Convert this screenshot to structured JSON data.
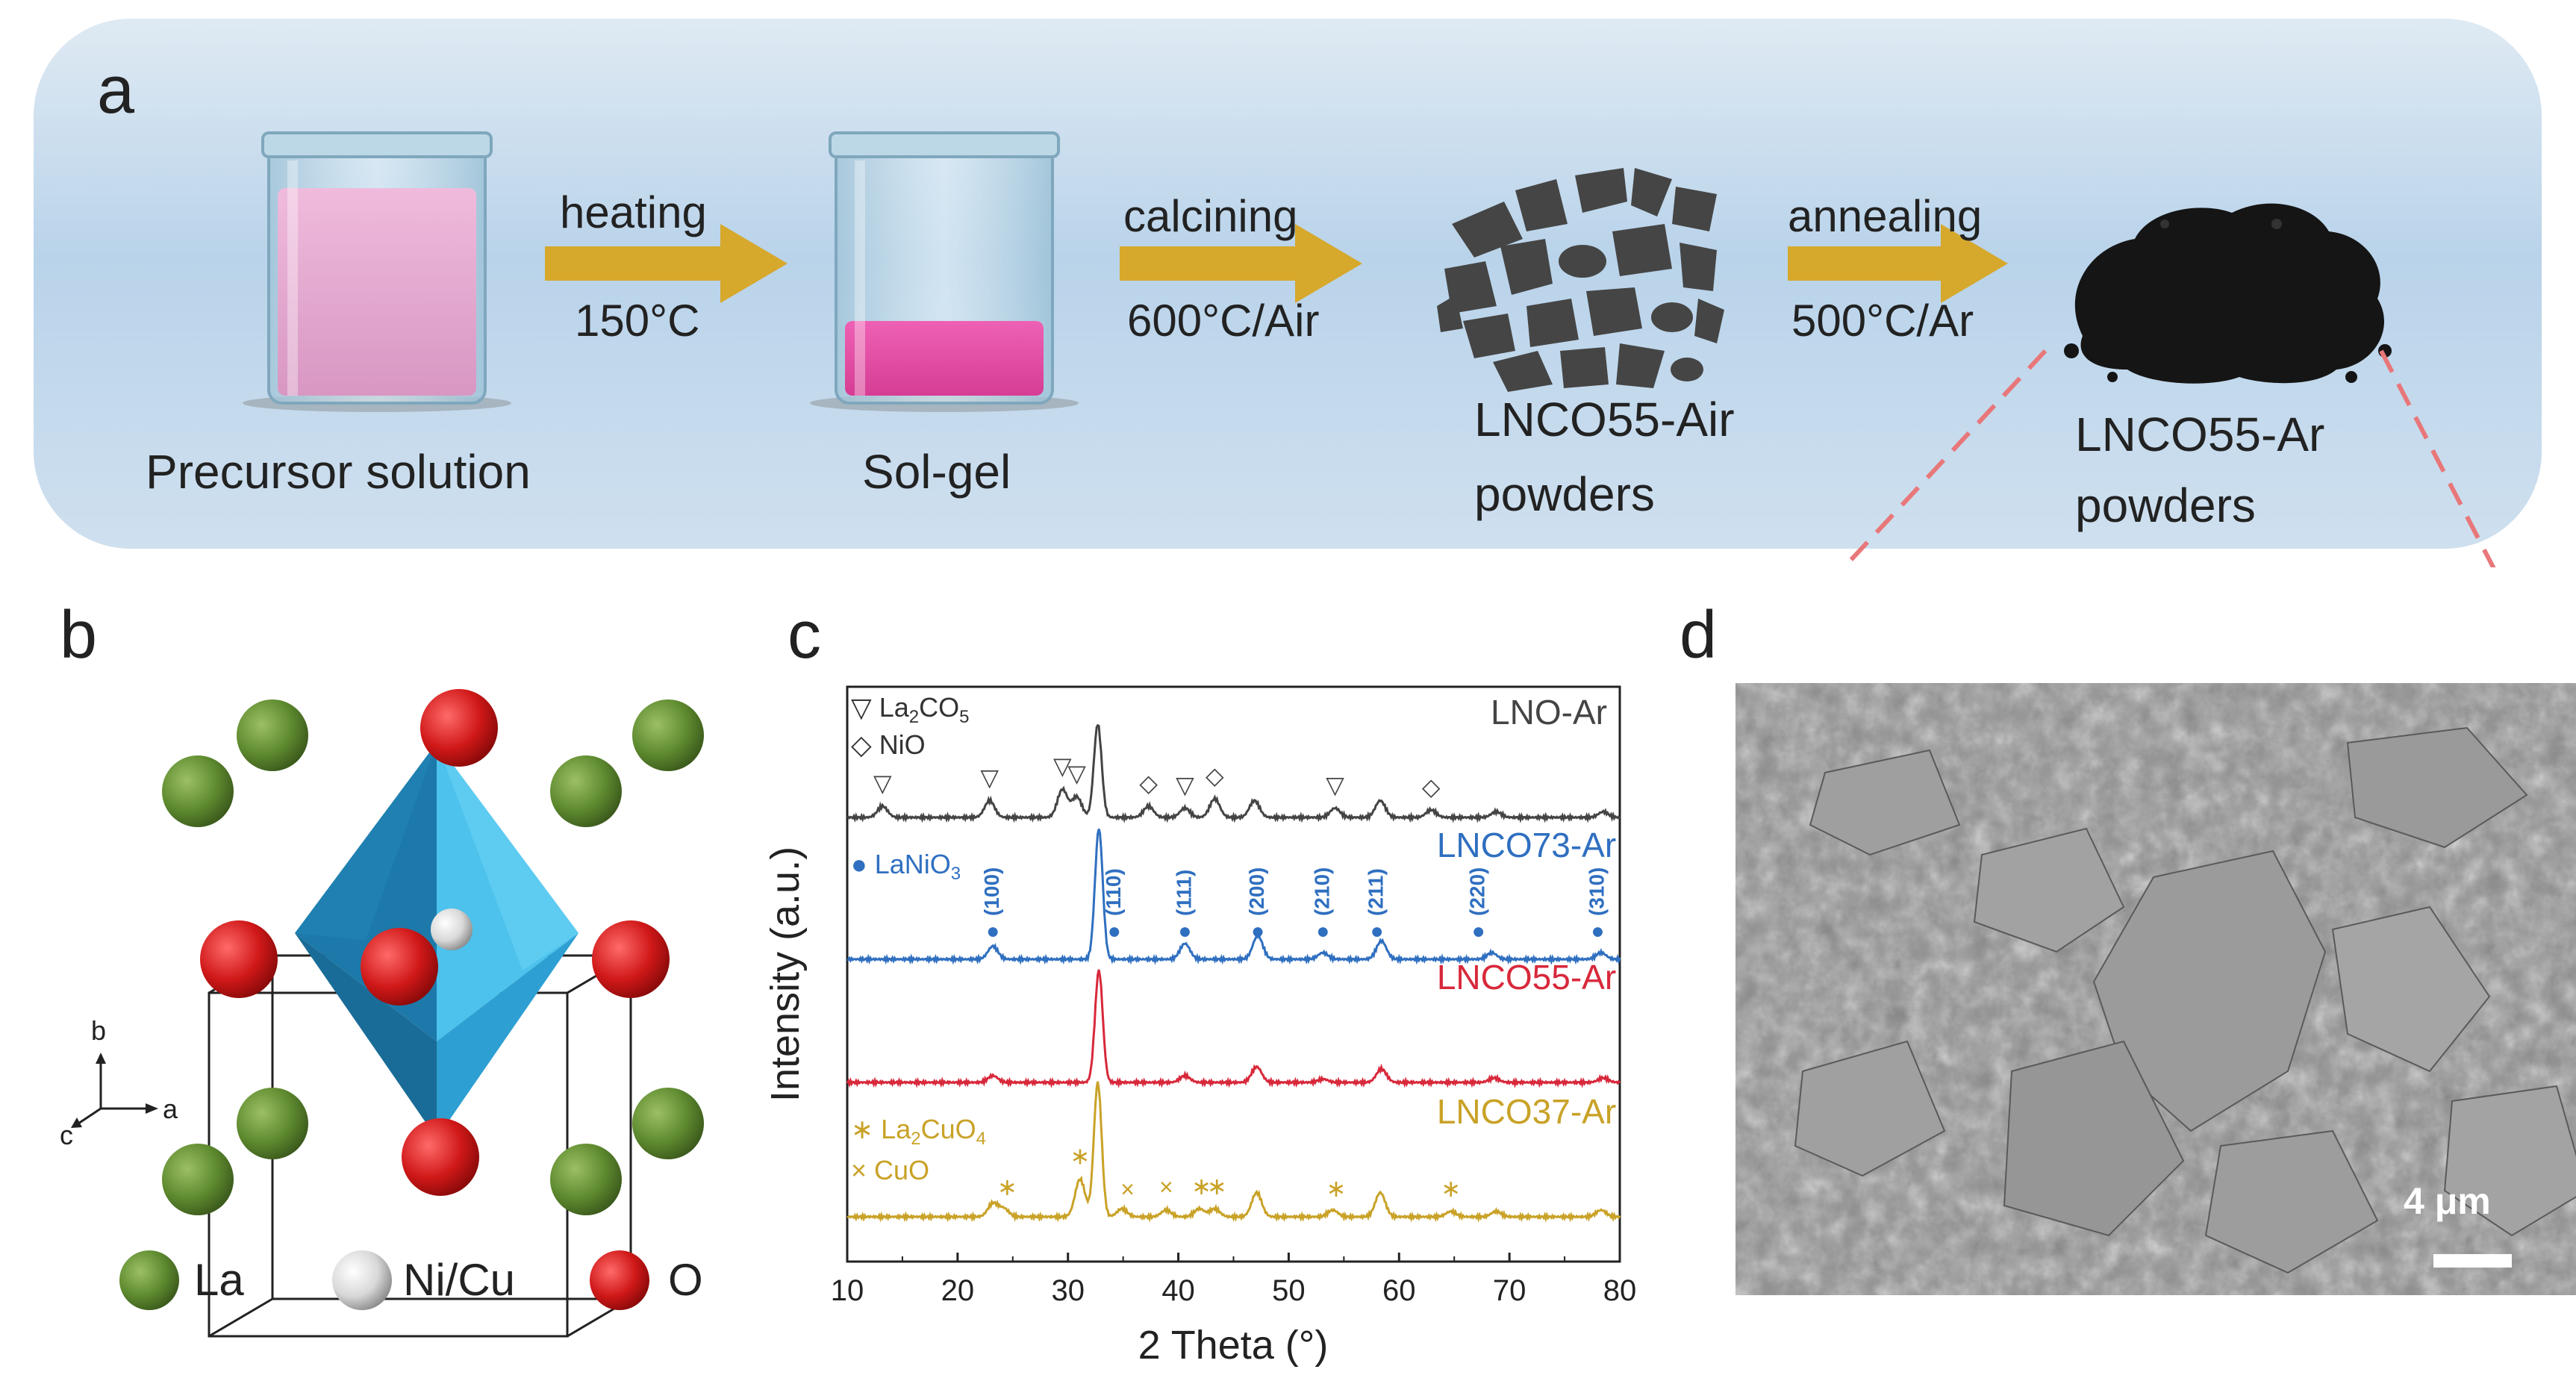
{
  "panel_a": {
    "label": "a",
    "steps": [
      {
        "label": "Precursor solution"
      },
      {
        "label": "Sol-gel"
      },
      {
        "label_line1": "LNCO55-Air",
        "label_line2": "powders"
      },
      {
        "label_line1": "LNCO55-Ar",
        "label_line2": "powders"
      }
    ],
    "arrows": [
      {
        "top": "heating",
        "bottom": "150°C"
      },
      {
        "top": "calcining",
        "bottom": "600°C/Air"
      },
      {
        "top": "annealing",
        "bottom": "500°C/Ar"
      }
    ],
    "colors": {
      "background": "#c6dcee",
      "arrow": "#d6a82c",
      "precursor_liquid": "#e6a6cf",
      "solgel": "#e2459e",
      "flakes": "#444444",
      "powder": "#151515",
      "dashed": "#e8777a"
    }
  },
  "panel_b": {
    "label": "b",
    "axes": {
      "a": "a",
      "b": "b",
      "c": "c"
    },
    "legend": [
      {
        "label": "La",
        "color": "#5e8a2f"
      },
      {
        "label": "Ni/Cu",
        "color": "#d8d8d8"
      },
      {
        "label": "O",
        "color": "#d01818"
      }
    ],
    "octahedron_color": "#2e9fd2"
  },
  "panel_c": {
    "label": "c",
    "chart_data": {
      "type": "line",
      "xlabel": "2 Theta (°)",
      "ylabel": "Intensity (a.u.)",
      "xlim": [
        10,
        80
      ],
      "xticks": [
        "10",
        "20",
        "30",
        "40",
        "50",
        "60",
        "70",
        "80"
      ],
      "series": [
        {
          "name": "LNO-Ar",
          "color": "#444444",
          "peaks": [
            [
              13.2,
              0.12
            ],
            [
              22.9,
              0.18
            ],
            [
              29.5,
              0.3
            ],
            [
              30.8,
              0.22
            ],
            [
              32.7,
              1.0
            ],
            [
              37.3,
              0.12
            ],
            [
              40.6,
              0.1
            ],
            [
              43.3,
              0.2
            ],
            [
              46.9,
              0.18
            ],
            [
              54.2,
              0.1
            ],
            [
              58.3,
              0.18
            ],
            [
              62.9,
              0.08
            ],
            [
              68.8,
              0.06
            ],
            [
              78.5,
              0.06
            ]
          ],
          "markers": [
            {
              "symbol": "▽",
              "x": 13.2
            },
            {
              "symbol": "▽",
              "x": 22.9
            },
            {
              "symbol": "▽",
              "x": 29.5
            },
            {
              "symbol": "▽",
              "x": 30.8
            },
            {
              "symbol": "◇",
              "x": 37.3
            },
            {
              "symbol": "▽",
              "x": 40.6
            },
            {
              "symbol": "◇",
              "x": 43.3
            },
            {
              "symbol": "▽",
              "x": 54.2
            },
            {
              "symbol": "◇",
              "x": 62.9
            }
          ],
          "legend": [
            {
              "symbol": "▽",
              "text": "La",
              "sub1": "2",
              "text2": "CO",
              "sub2": "5"
            },
            {
              "symbol": "◇",
              "text": "NiO"
            }
          ]
        },
        {
          "name": "LNCO73-Ar",
          "color": "#2f6fc0",
          "peaks": [
            [
              23.2,
              0.1
            ],
            [
              32.8,
              1.0
            ],
            [
              40.6,
              0.12
            ],
            [
              47.2,
              0.18
            ],
            [
              53.1,
              0.05
            ],
            [
              58.4,
              0.14
            ],
            [
              68.4,
              0.05
            ],
            [
              78.3,
              0.05
            ]
          ],
          "markers": [
            {
              "symbol": "●",
              "x": 23.2,
              "hkl": "(100)"
            },
            {
              "symbol": "●",
              "x": 34.2,
              "hkl": "(110)"
            },
            {
              "symbol": "●",
              "x": 40.6,
              "hkl": "(111)"
            },
            {
              "symbol": "●",
              "x": 47.2,
              "hkl": "(200)"
            },
            {
              "symbol": "●",
              "x": 53.1,
              "hkl": "(210)"
            },
            {
              "symbol": "●",
              "x": 58.0,
              "hkl": "(211)"
            },
            {
              "symbol": "●",
              "x": 67.2,
              "hkl": "(220)"
            },
            {
              "symbol": "●",
              "x": 78.0,
              "hkl": "(310)"
            }
          ],
          "legend": [
            {
              "symbol": "●",
              "text": "LaNiO",
              "sub1": "3"
            }
          ]
        },
        {
          "name": "LNCO55-Ar",
          "color": "#d8283b",
          "peaks": [
            [
              23.2,
              0.06
            ],
            [
              32.8,
              1.0
            ],
            [
              40.6,
              0.06
            ],
            [
              47.1,
              0.14
            ],
            [
              53.1,
              0.03
            ],
            [
              58.4,
              0.12
            ],
            [
              68.6,
              0.04
            ],
            [
              78.5,
              0.04
            ]
          ],
          "markers": [],
          "legend": []
        },
        {
          "name": "LNCO37-Ar",
          "color": "#c9a227",
          "peaks": [
            [
              23.2,
              0.1
            ],
            [
              24.2,
              0.06
            ],
            [
              31.1,
              0.28
            ],
            [
              32.7,
              1.0
            ],
            [
              34.9,
              0.06
            ],
            [
              38.9,
              0.05
            ],
            [
              41.9,
              0.06
            ],
            [
              43.3,
              0.06
            ],
            [
              47.1,
              0.18
            ],
            [
              54.0,
              0.05
            ],
            [
              58.3,
              0.18
            ],
            [
              64.7,
              0.04
            ],
            [
              68.8,
              0.04
            ],
            [
              78.3,
              0.05
            ]
          ],
          "markers": [
            {
              "symbol": "∗",
              "x": 24.5
            },
            {
              "symbol": "∗",
              "x": 31.1
            },
            {
              "symbol": "×",
              "x": 35.4
            },
            {
              "symbol": "×",
              "x": 38.9
            },
            {
              "symbol": "∗",
              "x": 42.1
            },
            {
              "symbol": "∗",
              "x": 43.5
            },
            {
              "symbol": "∗",
              "x": 54.3
            },
            {
              "symbol": "∗",
              "x": 64.7
            }
          ],
          "legend": [
            {
              "symbol": "∗",
              "text": "La",
              "sub1": "2",
              "text2": "CuO",
              "sub2": "4"
            },
            {
              "symbol": "×",
              "text": "CuO"
            }
          ]
        }
      ]
    }
  },
  "panel_d": {
    "label": "d",
    "scale_bar": "4 μm"
  }
}
